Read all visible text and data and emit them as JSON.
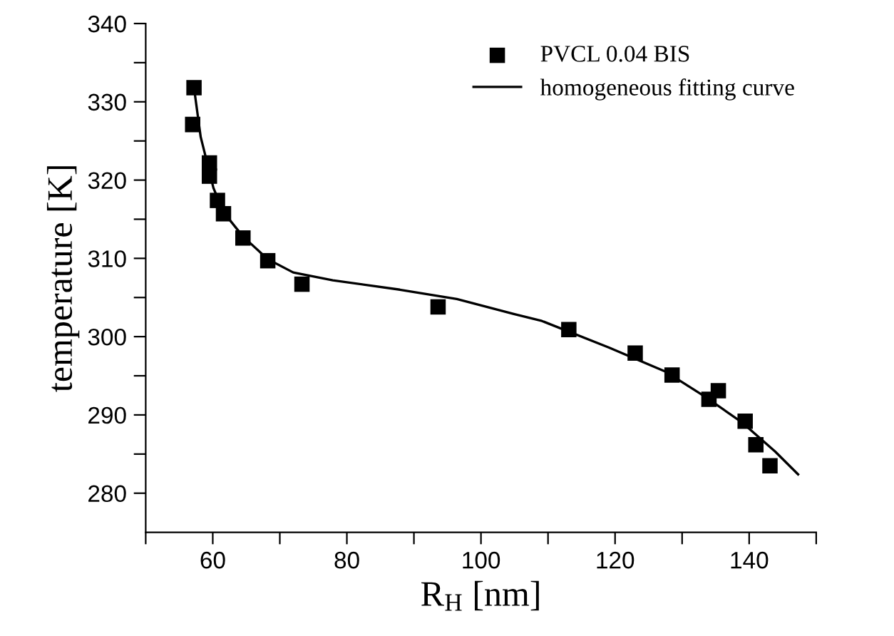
{
  "chart_data": {
    "type": "scatter",
    "xlabel": "R$_{H}$ [nm]",
    "ylabel": "temperature [K]",
    "xlim": [
      50,
      150
    ],
    "ylim": [
      275,
      340
    ],
    "xticks": [
      {
        "value": 50,
        "label": null
      },
      60,
      {
        "value": 70,
        "label": null
      },
      80,
      {
        "value": 90,
        "label": null
      },
      100,
      {
        "value": 110,
        "label": null
      },
      120,
      {
        "value": 130,
        "label": null
      },
      140,
      {
        "value": 150,
        "label": null
      }
    ],
    "yticks": [
      280,
      {
        "value": 285,
        "label": null
      },
      290,
      {
        "value": 295,
        "label": null
      },
      300,
      {
        "value": 305,
        "label": null
      },
      310,
      {
        "value": 315,
        "label": null
      },
      320,
      {
        "value": 325,
        "label": null
      },
      330,
      {
        "value": 335,
        "label": null
      },
      340
    ],
    "grid": false,
    "legend": "top right",
    "series": [
      {
        "name": "PVCL 0.04 BIS",
        "marker": "square",
        "color": "#000000",
        "x": [
          57.2,
          57.0,
          59.5,
          59.5,
          60.7,
          61.6,
          64.5,
          68.2,
          73.3,
          93.6,
          113.1,
          123.0,
          128.5,
          134.0,
          135.4,
          139.4,
          141.0,
          143.1
        ],
        "values": [
          331.8,
          327.1,
          322.2,
          320.5,
          317.4,
          315.7,
          312.6,
          309.7,
          306.7,
          303.8,
          300.9,
          297.9,
          295.1,
          292.0,
          293.1,
          289.2,
          286.2,
          283.5
        ]
      },
      {
        "name": "homogeneous fitting curve",
        "type": "line",
        "line_style": "solid",
        "color": "#000000",
        "x": [
          57.2,
          58.2,
          60.1,
          61.6,
          64.5,
          68.2,
          72.0,
          77.9,
          87.9,
          96.4,
          104.9,
          109.1,
          119.1,
          127.6,
          133.3,
          139.0,
          143.9,
          147.3
        ],
        "values": [
          331.8,
          325.5,
          319.0,
          315.9,
          312.8,
          309.9,
          308.2,
          307.2,
          306.0,
          304.8,
          302.9,
          302.0,
          298.6,
          295.5,
          292.4,
          289.0,
          285.3,
          282.4
        ]
      }
    ]
  }
}
